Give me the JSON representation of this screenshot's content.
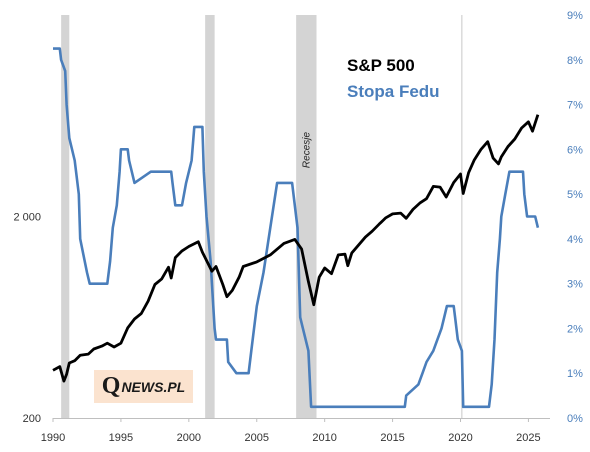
{
  "chart_data": {
    "type": "line",
    "title": "",
    "left_axis": {
      "scale": "log",
      "range": [
        200,
        20000
      ],
      "ticks": [
        {
          "value": 200,
          "label": "200"
        },
        {
          "value": 2000,
          "label": "2 000"
        }
      ]
    },
    "right_axis": {
      "range": [
        0,
        9
      ],
      "ticks": [
        "0%",
        "1%",
        "2%",
        "3%",
        "4%",
        "5%",
        "6%",
        "7%",
        "8%",
        "9%"
      ],
      "tick_values": [
        0,
        1,
        2,
        3,
        4,
        5,
        6,
        7,
        8,
        9
      ]
    },
    "x_axis": {
      "range": [
        1990,
        2026
      ],
      "ticks": [
        "1990",
        "1995",
        "2000",
        "2005",
        "2010",
        "2015",
        "2020",
        "2025"
      ],
      "tick_values": [
        1990,
        1995,
        2000,
        2005,
        2010,
        2015,
        2020,
        2025
      ]
    },
    "recessions": [
      {
        "start": 1990.6,
        "end": 1991.2
      },
      {
        "start": 2001.2,
        "end": 2001.9
      },
      {
        "start": 2007.9,
        "end": 2009.4
      }
    ],
    "recession_label": "Recesje",
    "marker_line_year": 2020.1,
    "series": [
      {
        "name": "S&P 500",
        "axis": "left",
        "color": "#000000",
        "points": [
          [
            1990.0,
            345
          ],
          [
            1990.5,
            360
          ],
          [
            1990.8,
            305
          ],
          [
            1991.0,
            330
          ],
          [
            1991.2,
            375
          ],
          [
            1991.6,
            385
          ],
          [
            1992.0,
            410
          ],
          [
            1992.6,
            415
          ],
          [
            1993.0,
            440
          ],
          [
            1993.6,
            455
          ],
          [
            1994.0,
            470
          ],
          [
            1994.5,
            450
          ],
          [
            1995.0,
            470
          ],
          [
            1995.5,
            560
          ],
          [
            1996.0,
            620
          ],
          [
            1996.5,
            660
          ],
          [
            1997.0,
            760
          ],
          [
            1997.5,
            920
          ],
          [
            1998.0,
            980
          ],
          [
            1998.5,
            1120
          ],
          [
            1998.7,
            990
          ],
          [
            1999.0,
            1250
          ],
          [
            1999.5,
            1350
          ],
          [
            2000.0,
            1420
          ],
          [
            2000.7,
            1500
          ],
          [
            2001.0,
            1330
          ],
          [
            2001.7,
            1070
          ],
          [
            2002.0,
            1130
          ],
          [
            2002.5,
            920
          ],
          [
            2002.8,
            800
          ],
          [
            2003.2,
            860
          ],
          [
            2003.7,
            1000
          ],
          [
            2004.0,
            1130
          ],
          [
            2005.0,
            1190
          ],
          [
            2006.0,
            1290
          ],
          [
            2007.0,
            1470
          ],
          [
            2007.8,
            1540
          ],
          [
            2008.3,
            1380
          ],
          [
            2008.8,
            950
          ],
          [
            2009.2,
            730
          ],
          [
            2009.6,
            1000
          ],
          [
            2010.0,
            1110
          ],
          [
            2010.5,
            1040
          ],
          [
            2011.0,
            1290
          ],
          [
            2011.5,
            1300
          ],
          [
            2011.7,
            1140
          ],
          [
            2012.0,
            1320
          ],
          [
            2013.0,
            1580
          ],
          [
            2013.5,
            1690
          ],
          [
            2014.0,
            1830
          ],
          [
            2014.5,
            1970
          ],
          [
            2015.0,
            2060
          ],
          [
            2015.6,
            2080
          ],
          [
            2016.0,
            1960
          ],
          [
            2016.5,
            2170
          ],
          [
            2017.0,
            2330
          ],
          [
            2017.5,
            2450
          ],
          [
            2018.0,
            2820
          ],
          [
            2018.5,
            2800
          ],
          [
            2018.95,
            2500
          ],
          [
            2019.5,
            2950
          ],
          [
            2020.0,
            3250
          ],
          [
            2020.2,
            2600
          ],
          [
            2020.6,
            3300
          ],
          [
            2021.0,
            3800
          ],
          [
            2021.5,
            4300
          ],
          [
            2022.0,
            4700
          ],
          [
            2022.4,
            3900
          ],
          [
            2022.8,
            3650
          ],
          [
            2023.0,
            3950
          ],
          [
            2023.5,
            4450
          ],
          [
            2024.0,
            4850
          ],
          [
            2024.5,
            5500
          ],
          [
            2025.0,
            5900
          ],
          [
            2025.3,
            5300
          ],
          [
            2025.7,
            6400
          ]
        ]
      },
      {
        "name": "Stopa Fedu",
        "axis": "right",
        "color": "#4a7ebb",
        "points": [
          [
            1990.0,
            8.25
          ],
          [
            1990.5,
            8.25
          ],
          [
            1990.6,
            8.0
          ],
          [
            1990.9,
            7.75
          ],
          [
            1991.0,
            7.0
          ],
          [
            1991.2,
            6.25
          ],
          [
            1991.6,
            5.75
          ],
          [
            1991.9,
            5.0
          ],
          [
            1992.0,
            4.0
          ],
          [
            1992.5,
            3.25
          ],
          [
            1992.7,
            3.0
          ],
          [
            1994.0,
            3.0
          ],
          [
            1994.2,
            3.5
          ],
          [
            1994.4,
            4.25
          ],
          [
            1994.7,
            4.75
          ],
          [
            1994.9,
            5.5
          ],
          [
            1995.0,
            6.0
          ],
          [
            1995.5,
            6.0
          ],
          [
            1995.6,
            5.75
          ],
          [
            1996.0,
            5.25
          ],
          [
            1997.2,
            5.5
          ],
          [
            1998.7,
            5.5
          ],
          [
            1998.8,
            5.25
          ],
          [
            1999.0,
            4.75
          ],
          [
            1999.5,
            4.75
          ],
          [
            1999.8,
            5.25
          ],
          [
            2000.2,
            5.75
          ],
          [
            2000.4,
            6.5
          ],
          [
            2001.0,
            6.5
          ],
          [
            2001.1,
            5.5
          ],
          [
            2001.3,
            4.5
          ],
          [
            2001.6,
            3.5
          ],
          [
            2001.9,
            2.0
          ],
          [
            2002.0,
            1.75
          ],
          [
            2002.8,
            1.75
          ],
          [
            2002.9,
            1.25
          ],
          [
            2003.5,
            1.0
          ],
          [
            2004.4,
            1.0
          ],
          [
            2004.6,
            1.5
          ],
          [
            2005.0,
            2.5
          ],
          [
            2005.5,
            3.25
          ],
          [
            2006.0,
            4.25
          ],
          [
            2006.5,
            5.25
          ],
          [
            2007.6,
            5.25
          ],
          [
            2007.8,
            4.75
          ],
          [
            2008.0,
            4.25
          ],
          [
            2008.2,
            2.25
          ],
          [
            2008.4,
            2.0
          ],
          [
            2008.8,
            1.5
          ],
          [
            2009.0,
            0.25
          ],
          [
            2015.9,
            0.25
          ],
          [
            2016.0,
            0.5
          ],
          [
            2016.9,
            0.75
          ],
          [
            2017.2,
            1.0
          ],
          [
            2017.5,
            1.25
          ],
          [
            2018.0,
            1.5
          ],
          [
            2018.3,
            1.75
          ],
          [
            2018.6,
            2.0
          ],
          [
            2018.8,
            2.25
          ],
          [
            2019.0,
            2.5
          ],
          [
            2019.5,
            2.5
          ],
          [
            2019.6,
            2.25
          ],
          [
            2019.8,
            1.75
          ],
          [
            2020.1,
            1.5
          ],
          [
            2020.2,
            0.25
          ],
          [
            2022.1,
            0.25
          ],
          [
            2022.3,
            0.75
          ],
          [
            2022.5,
            1.75
          ],
          [
            2022.7,
            3.25
          ],
          [
            2022.9,
            4.0
          ],
          [
            2023.0,
            4.5
          ],
          [
            2023.3,
            5.0
          ],
          [
            2023.6,
            5.5
          ],
          [
            2024.6,
            5.5
          ],
          [
            2024.7,
            5.0
          ],
          [
            2024.9,
            4.5
          ],
          [
            2025.5,
            4.5
          ],
          [
            2025.7,
            4.25
          ]
        ]
      }
    ],
    "legend": [
      {
        "label": "S&P 500",
        "color": "#000000"
      },
      {
        "label": "Stopa Fedu",
        "color": "#4a7ebb"
      }
    ],
    "legend_position": "top-right",
    "grid": false
  },
  "watermark": {
    "main": "Q",
    "rest": "NEWS.PL"
  }
}
